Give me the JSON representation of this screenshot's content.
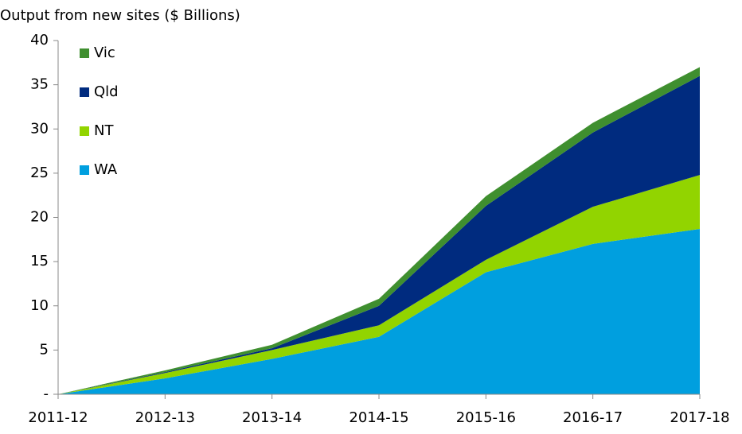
{
  "chart_data": {
    "type": "stacked-area",
    "title": "Output from new sites ($ Billions)",
    "categories": [
      "2011-12",
      "2012-13",
      "2013-14",
      "2014-15",
      "2015-16",
      "2016-17",
      "2017-18"
    ],
    "series": [
      {
        "name": "WA",
        "color": "#009fdf",
        "values": [
          0,
          1.8,
          4.0,
          6.5,
          13.8,
          17.0,
          18.7
        ]
      },
      {
        "name": "NT",
        "color": "#92d400",
        "values": [
          0,
          0.6,
          1.0,
          1.3,
          1.4,
          4.2,
          6.1
        ]
      },
      {
        "name": "Qld",
        "color": "#002b7f",
        "values": [
          0,
          0.1,
          0.2,
          2.2,
          6.1,
          8.4,
          11.2
        ]
      },
      {
        "name": "Vic",
        "color": "#3f8f2f",
        "values": [
          0,
          0.2,
          0.4,
          0.8,
          1.1,
          1.1,
          1.0
        ]
      }
    ],
    "ylim": [
      0,
      40
    ],
    "yticks": [
      {
        "value": 0,
        "label": "-"
      },
      5,
      10,
      15,
      20,
      25,
      30,
      35,
      40
    ],
    "legend": "upper-left",
    "grid": false
  }
}
